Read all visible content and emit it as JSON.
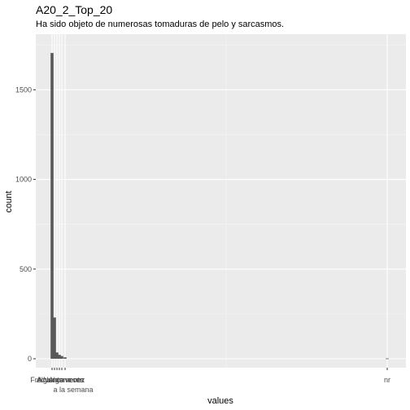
{
  "chart_data": {
    "type": "bar",
    "title": "A20_2_Top_20",
    "subtitle": "Ha sido objeto de numerosas tomaduras de pelo y sarcasmos.",
    "xlabel": "values",
    "ylabel": "count",
    "ylim": [
      0,
      1760
    ],
    "yticks": [
      0,
      500,
      1000,
      1500
    ],
    "grid": true,
    "background": "#ebebeb",
    "bar_color": "#595959",
    "x_tick_labels": [
      "A",
      "Alguna vez",
      "Algunas veces",
      "a la semana",
      "Nunca",
      "Frecuentemente",
      "nr"
    ],
    "categories": [
      "A",
      "Alguna vez",
      "Algunas veces",
      "a la semana",
      "Nunca",
      "Frecuentemente",
      "nr"
    ],
    "values": [
      1705,
      230,
      35,
      22,
      15,
      8,
      2
    ]
  }
}
